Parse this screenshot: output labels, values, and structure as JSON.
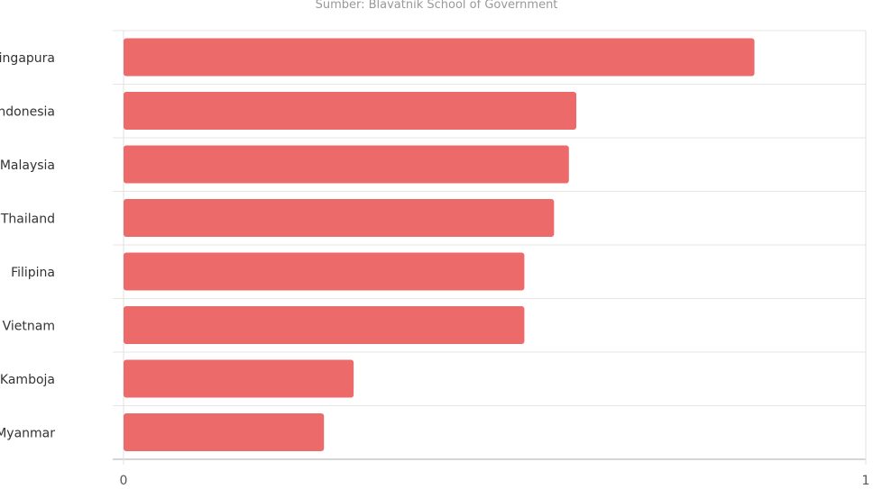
{
  "chart_data": {
    "type": "bar",
    "orientation": "horizontal",
    "subtitle": "Sumber: Blavatnik School of Government",
    "categories": [
      "Singapura",
      "Indonesia",
      "Malaysia",
      "Thailand",
      "Filipina",
      "Vietnam",
      "Kamboja",
      "Myanmar"
    ],
    "values": [
      0.85,
      0.61,
      0.6,
      0.58,
      0.54,
      0.54,
      0.31,
      0.27
    ],
    "xlim": [
      0,
      1
    ],
    "xticks": [
      "0",
      "1"
    ],
    "grid": true,
    "bar_color": "#ec6a6a"
  }
}
